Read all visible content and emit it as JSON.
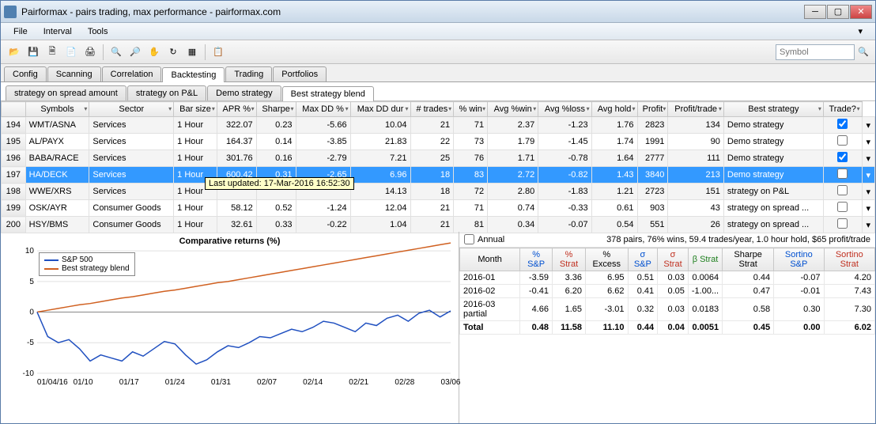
{
  "window": {
    "title": "Pairformax - pairs trading, max performance - pairformax.com"
  },
  "menu": [
    "File",
    "Interval",
    "Tools"
  ],
  "toolbar": {
    "symbol_placeholder": "Symbol"
  },
  "main_tabs": [
    "Config",
    "Scanning",
    "Correlation",
    "Backtesting",
    "Trading",
    "Portfolios"
  ],
  "main_tab_active": 3,
  "sub_tabs": [
    "strategy on spread amount",
    "strategy on P&L",
    "Demo strategy",
    "Best strategy blend"
  ],
  "sub_tab_active": 3,
  "grid": {
    "columns": [
      "",
      "Symbols",
      "Sector",
      "Bar size",
      "APR %",
      "Sharpe",
      "Max DD %",
      "Max DD dur",
      "# trades",
      "% win",
      "Avg %win",
      "Avg %loss",
      "Avg hold",
      "Profit",
      "Profit/trade",
      "Best strategy",
      "Trade?"
    ],
    "rows": [
      {
        "n": "194",
        "sym": "WMT/ASNA",
        "sec": "Services",
        "bar": "1 Hour",
        "apr": "322.07",
        "sh": "0.23",
        "dd": "-5.66",
        "ddd": "10.04",
        "tr": "21",
        "win": "71",
        "aw": "2.37",
        "al": "-1.23",
        "ah": "1.76",
        "pf": "2823",
        "pt": "134",
        "bs": "Demo strategy",
        "chk": true
      },
      {
        "n": "195",
        "sym": "AL/PAYX",
        "sec": "Services",
        "bar": "1 Hour",
        "apr": "164.37",
        "sh": "0.14",
        "dd": "-3.85",
        "ddd": "21.83",
        "tr": "22",
        "win": "73",
        "aw": "1.79",
        "al": "-1.45",
        "ah": "1.74",
        "pf": "1991",
        "pt": "90",
        "bs": "Demo strategy",
        "chk": false
      },
      {
        "n": "196",
        "sym": "BABA/RACE",
        "sec": "Services",
        "bar": "1 Hour",
        "apr": "301.76",
        "sh": "0.16",
        "dd": "-2.79",
        "ddd": "7.21",
        "tr": "25",
        "win": "76",
        "aw": "1.71",
        "al": "-0.78",
        "ah": "1.64",
        "pf": "2777",
        "pt": "111",
        "bs": "Demo strategy",
        "chk": true
      },
      {
        "n": "197",
        "sym": "HA/DECK",
        "sec": "Services",
        "bar": "1 Hour",
        "apr": "600.42",
        "sh": "0.31",
        "dd": "-2.65",
        "ddd": "6.96",
        "tr": "18",
        "win": "83",
        "aw": "2.72",
        "al": "-0.82",
        "ah": "1.43",
        "pf": "3840",
        "pt": "213",
        "bs": "Demo strategy",
        "chk": false,
        "sel": true
      },
      {
        "n": "198",
        "sym": "WWE/XRS",
        "sec": "Services",
        "bar": "1 Hour",
        "apr": "",
        "sh": "",
        "dd": "",
        "ddd": "14.13",
        "tr": "18",
        "win": "72",
        "aw": "2.80",
        "al": "-1.83",
        "ah": "1.21",
        "pf": "2723",
        "pt": "151",
        "bs": "strategy on P&L",
        "chk": false
      },
      {
        "n": "199",
        "sym": "OSK/AYR",
        "sec": "Consumer Goods",
        "bar": "1 Hour",
        "apr": "58.12",
        "sh": "0.52",
        "dd": "-1.24",
        "ddd": "12.04",
        "tr": "21",
        "win": "71",
        "aw": "0.74",
        "al": "-0.33",
        "ah": "0.61",
        "pf": "903",
        "pt": "43",
        "bs": "strategy on spread ...",
        "chk": false
      },
      {
        "n": "200",
        "sym": "HSY/BMS",
        "sec": "Consumer Goods",
        "bar": "1 Hour",
        "apr": "32.61",
        "sh": "0.33",
        "dd": "-0.22",
        "ddd": "1.04",
        "tr": "21",
        "win": "81",
        "aw": "0.34",
        "al": "-0.07",
        "ah": "0.54",
        "pf": "551",
        "pt": "26",
        "bs": "strategy on spread ...",
        "chk": false
      }
    ]
  },
  "tooltip": "Last updated: 17-Mar-2016 16:52:30",
  "chart": {
    "title": "Comparative returns (%)",
    "legend": [
      {
        "label": "S&P 500",
        "color": "#2050c0"
      },
      {
        "label": "Best strategy blend",
        "color": "#d06020"
      }
    ],
    "ylim": [
      -10,
      10
    ],
    "yticks": [
      -10,
      -5,
      0,
      5,
      10
    ],
    "xticks": [
      "01/04/16",
      "01/10",
      "01/17",
      "01/24",
      "01/31",
      "02/07",
      "02/14",
      "02/21",
      "02/28",
      "03/06"
    ],
    "series_sp": [
      0,
      -4,
      -5,
      -4.5,
      -6,
      -8,
      -7,
      -7.5,
      -8,
      -6.5,
      -7.2,
      -6,
      -4.8,
      -5.2,
      -7,
      -8.5,
      -7.8,
      -6.5,
      -5.5,
      -5.8,
      -5,
      -4,
      -4.2,
      -3.5,
      -2.8,
      -3.2,
      -2.5,
      -1.5,
      -1.8,
      -2.5,
      -3.2,
      -1.8,
      -2.2,
      -1,
      -0.5,
      -1.5,
      -0.2,
      0.3,
      -0.8,
      0.2
    ],
    "series_best": [
      0,
      0.3,
      0.6,
      0.9,
      1.2,
      1.4,
      1.7,
      2.0,
      2.3,
      2.5,
      2.8,
      3.1,
      3.4,
      3.6,
      3.9,
      4.2,
      4.5,
      4.8,
      5.0,
      5.3,
      5.6,
      5.9,
      6.2,
      6.5,
      6.8,
      7.1,
      7.4,
      7.7,
      8.0,
      8.3,
      8.6,
      8.9,
      9.2,
      9.5,
      9.8,
      10.1,
      10.4,
      10.7,
      11.0,
      11.3
    ],
    "colors": {
      "sp": "#2050c0",
      "best": "#d06020",
      "grid": "#e0e0e0",
      "axis": "#888"
    }
  },
  "stats": {
    "annual_label": "Annual",
    "summary": "378 pairs, 76% wins, 59.4 trades/year, 1.0 hour hold, $65 profit/trade",
    "columns": [
      "Month",
      "% S&P",
      "% Strat",
      "% Excess",
      "σ S&P",
      "σ Strat",
      "β Strat",
      "Sharpe Strat",
      "Sortino S&P",
      "Sortino Strat"
    ],
    "col_colors": [
      "",
      "blue-head",
      "red-head",
      "",
      "blue-head",
      "red-head",
      "green-head",
      "",
      "blue-head",
      "red-head"
    ],
    "rows": [
      [
        "2016-01",
        "-3.59",
        "3.36",
        "6.95",
        "0.51",
        "0.03",
        "0.0064",
        "0.44",
        "-0.07",
        "4.20"
      ],
      [
        "2016-02",
        "-0.41",
        "6.20",
        "6.62",
        "0.41",
        "0.05",
        "-1.00...",
        "0.47",
        "-0.01",
        "7.43"
      ],
      [
        "2016-03 partial",
        "4.66",
        "1.65",
        "-3.01",
        "0.32",
        "0.03",
        "0.0183",
        "0.58",
        "0.30",
        "7.30"
      ],
      [
        "Total",
        "0.48",
        "11.58",
        "11.10",
        "0.44",
        "0.04",
        "0.0051",
        "0.45",
        "0.00",
        "6.02"
      ]
    ]
  }
}
